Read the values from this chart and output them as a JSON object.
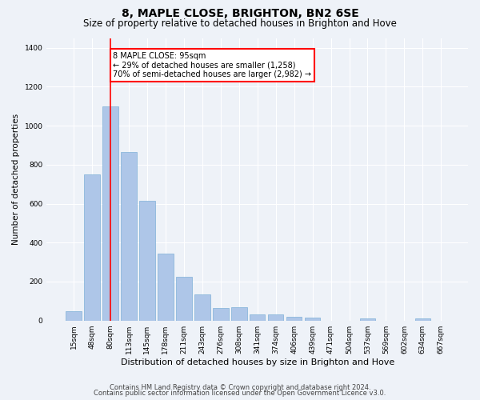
{
  "title": "8, MAPLE CLOSE, BRIGHTON, BN2 6SE",
  "subtitle": "Size of property relative to detached houses in Brighton and Hove",
  "xlabel": "Distribution of detached houses by size in Brighton and Hove",
  "ylabel": "Number of detached properties",
  "footer1": "Contains HM Land Registry data © Crown copyright and database right 2024.",
  "footer2": "Contains public sector information licensed under the Open Government Licence v3.0.",
  "categories": [
    "15sqm",
    "48sqm",
    "80sqm",
    "113sqm",
    "145sqm",
    "178sqm",
    "211sqm",
    "243sqm",
    "276sqm",
    "308sqm",
    "341sqm",
    "374sqm",
    "406sqm",
    "439sqm",
    "471sqm",
    "504sqm",
    "537sqm",
    "569sqm",
    "602sqm",
    "634sqm",
    "667sqm"
  ],
  "values": [
    50,
    750,
    1100,
    865,
    615,
    345,
    225,
    135,
    65,
    70,
    30,
    30,
    20,
    15,
    0,
    0,
    12,
    0,
    0,
    12,
    0
  ],
  "bar_color": "#aec6e8",
  "bar_edge_color": "#7fb0d8",
  "vline_x": 2,
  "vline_color": "red",
  "annotation_text": "8 MAPLE CLOSE: 95sqm\n← 29% of detached houses are smaller (1,258)\n70% of semi-detached houses are larger (2,982) →",
  "annotation_box_color": "white",
  "annotation_box_edgecolor": "red",
  "ylim": [
    0,
    1450
  ],
  "yticks": [
    0,
    200,
    400,
    600,
    800,
    1000,
    1200,
    1400
  ],
  "bg_color": "#eef2f8",
  "plot_bg_color": "#eef2f8",
  "grid_color": "white",
  "title_fontsize": 10,
  "subtitle_fontsize": 8.5,
  "xlabel_fontsize": 8,
  "ylabel_fontsize": 7.5,
  "tick_fontsize": 6.5,
  "footer_fontsize": 6,
  "annot_fontsize": 7
}
